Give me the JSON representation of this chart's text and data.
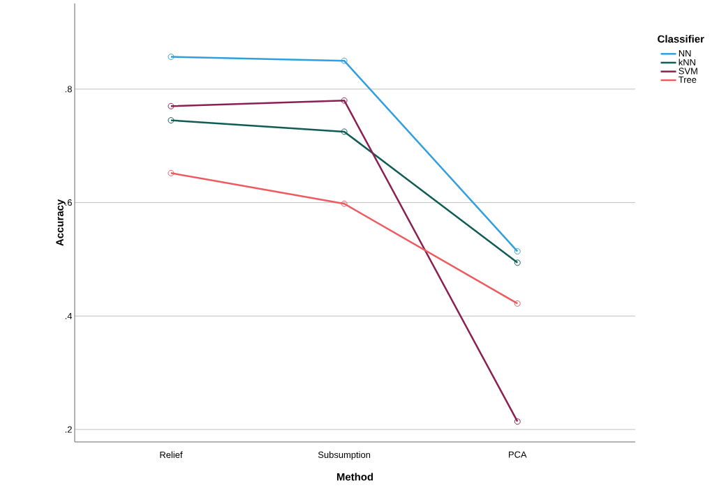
{
  "chart_data": {
    "type": "line",
    "xlabel": "Method",
    "ylabel": "Accuracy",
    "legend_title": "Classifier",
    "categories": [
      "Relief",
      "Subsumption",
      "PCA"
    ],
    "series": [
      {
        "name": "NN",
        "color": "#2f9fe0",
        "values": [
          0.857,
          0.85,
          0.514
        ]
      },
      {
        "name": "kNN",
        "color": "#0f5c55",
        "values": [
          0.745,
          0.725,
          0.494
        ]
      },
      {
        "name": "SVM",
        "color": "#8b1f52",
        "values": [
          0.77,
          0.78,
          0.214
        ]
      },
      {
        "name": "Tree",
        "color": "#ee5a5f",
        "values": [
          0.652,
          0.598,
          0.422
        ]
      }
    ],
    "ylim": [
      0.178,
      0.951
    ],
    "yticks": [
      {
        "value": 0.2,
        "label": ".2"
      },
      {
        "value": 0.4,
        "label": ".4"
      },
      {
        "value": 0.6,
        "label": ".6"
      },
      {
        "value": 0.8,
        "label": ".8"
      }
    ],
    "grid": "y",
    "legend": "right",
    "marker": "circle",
    "line_style": "solid"
  }
}
